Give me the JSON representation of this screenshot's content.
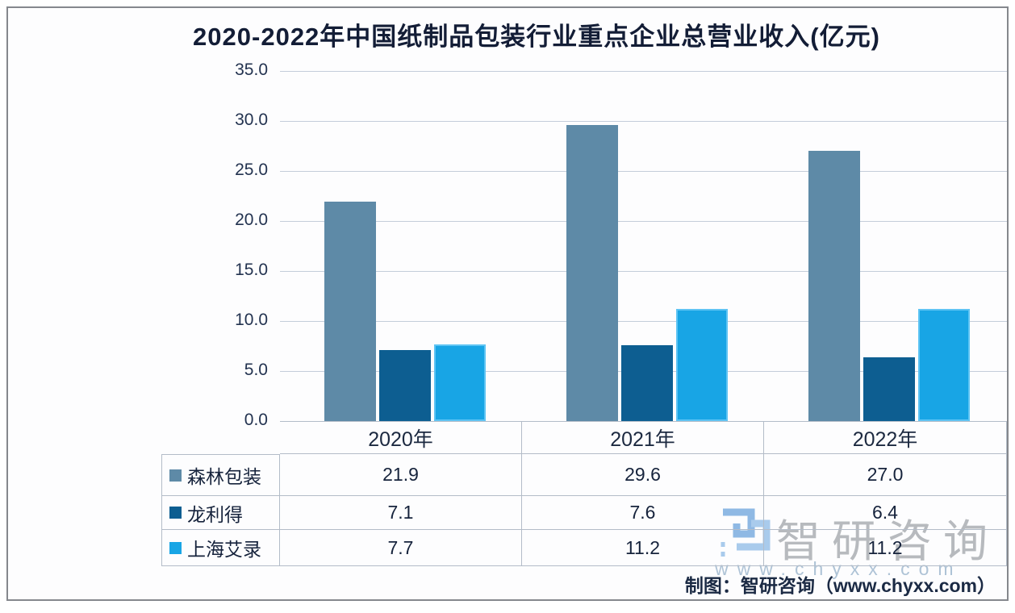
{
  "title": "2020-2022年中国纸制品包装行业重点企业总营业收入(亿元)",
  "chart_data": {
    "type": "bar",
    "title": "2020-2022年中国纸制品包装行业重点企业总营业收入(亿元)",
    "categories": [
      "2020年",
      "2021年",
      "2022年"
    ],
    "series": [
      {
        "name": "森林包装",
        "color": "#5E8AA7",
        "values": [
          21.9,
          29.6,
          27.0
        ]
      },
      {
        "name": "龙利得",
        "color": "#0D5E91",
        "values": [
          7.1,
          7.6,
          6.4
        ]
      },
      {
        "name": "上海艾录",
        "color": "#18A5E5",
        "values": [
          7.7,
          11.2,
          11.2
        ]
      }
    ],
    "ylim": [
      0,
      35
    ],
    "ytick_step": 5,
    "yticks": [
      "35.0",
      "30.0",
      "25.0",
      "20.0",
      "15.0",
      "10.0",
      "5.0",
      "0.0"
    ],
    "grid": true,
    "legend_position": "table-left-column",
    "value_format_decimals": 1
  },
  "caption": "制图：智研咨询（www.chyxx.com）",
  "watermark": {
    "brand": "智研咨询",
    "url": "www.chyxx.com",
    "logo_icon": "zhiyan-logo-icon"
  },
  "colors": {
    "series1_bar": "#5E8AA7",
    "series2_bar": "#0D5E91",
    "series3_bar": "#18A5E5",
    "series3_bar_edge": "#5EC4F4",
    "gridline": "#C4CDDA",
    "table_border": "#B3BCC8",
    "frame_border": "#85888D",
    "text_dark": "#16233C",
    "watermark_gray": "#B7BABE",
    "watermark_blue": "#AEC3D6"
  }
}
